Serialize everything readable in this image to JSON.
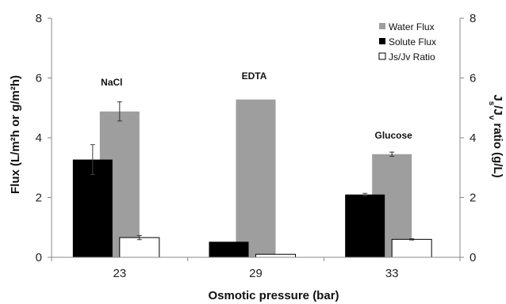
{
  "chart_data": {
    "type": "bar",
    "categories": [
      "23",
      "29",
      "33"
    ],
    "xlabel": "Osmotic pressure (bar)",
    "ylabel_left": "Flux (L/m²h or g/m²h)",
    "ylabel_right": "J_s/J_v ratio (g/L)",
    "ylim_left": [
      0,
      8
    ],
    "ylim_right": [
      0,
      8
    ],
    "yticks_left": [
      "0",
      "2",
      "4",
      "6",
      "8"
    ],
    "yticks_right": [
      "0",
      "2",
      "4",
      "6",
      "8"
    ],
    "grid": false,
    "legend_position": "top-right",
    "annotations": [
      "NaCl",
      "EDTA",
      "Glucose"
    ],
    "series": [
      {
        "name": "Water Flux",
        "color": "#9e9e9e",
        "values": [
          4.88,
          5.28,
          3.45
        ],
        "errors": [
          0.32,
          0,
          0.07
        ],
        "placement": "center"
      },
      {
        "name": "Solute Flux",
        "color": "#000000",
        "values": [
          3.27,
          0.52,
          2.1
        ],
        "errors": [
          0.5,
          0,
          0.04
        ],
        "placement": "left"
      },
      {
        "name": "Js/Jv Ratio",
        "color": "#ffffff",
        "values": [
          0.66,
          0.1,
          0.6
        ],
        "errors": [
          0.07,
          0,
          0.02
        ],
        "placement": "right"
      }
    ]
  }
}
